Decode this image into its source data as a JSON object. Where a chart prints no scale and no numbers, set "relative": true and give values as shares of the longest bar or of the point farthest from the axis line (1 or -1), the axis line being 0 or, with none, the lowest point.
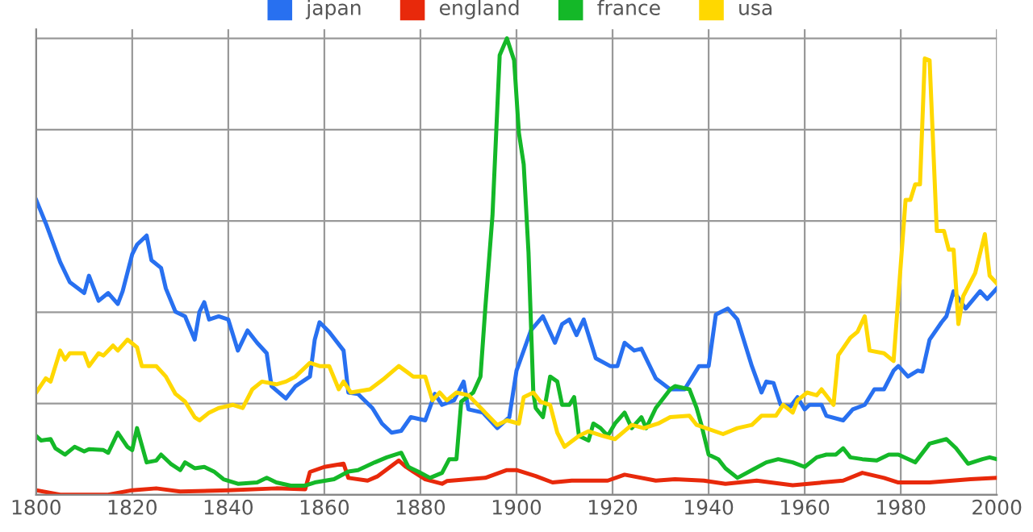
{
  "chart_data": {
    "type": "line",
    "relative": true,
    "xlim": [
      1800,
      2000
    ],
    "xticks": [
      1800,
      1820,
      1840,
      1860,
      1880,
      1900,
      1920,
      1940,
      1960,
      1980,
      2000
    ],
    "tick_labels": "x",
    "grid": true,
    "legend": "top",
    "marker": "none",
    "line_style": "solid",
    "series": [
      {
        "name": "japan",
        "color": "#2870f0",
        "x": [
          1800,
          1802,
          1805,
          1807,
          1810,
          1811,
          1813,
          1815,
          1817,
          1818,
          1820,
          1821,
          1823,
          1824,
          1826,
          1827,
          1829,
          1831,
          1833,
          1834,
          1835,
          1836,
          1838,
          1840,
          1842,
          1844,
          1846,
          1848,
          1849,
          1852,
          1854,
          1857,
          1858,
          1859,
          1861,
          1864,
          1865,
          1867,
          1870,
          1872,
          1874,
          1876,
          1878,
          1881,
          1883,
          1884.5,
          1887,
          1889,
          1890,
          1893,
          1896,
          1898.5,
          1900,
          1903,
          1905.5,
          1908,
          1909.5,
          1911,
          1912.5,
          1914,
          1916.5,
          1919.5,
          1921,
          1922.5,
          1924.5,
          1926,
          1929,
          1932,
          1935,
          1938,
          1940,
          1941.5,
          1944,
          1946,
          1949,
          1951,
          1952,
          1953.5,
          1955,
          1957,
          1958.5,
          1960,
          1961,
          1963.5,
          1964.5,
          1968,
          1970,
          1972.5,
          1974.5,
          1976.5,
          1978.5,
          1979.5,
          1981.5,
          1983.5,
          1984.5,
          1986,
          1988.5,
          1989.5,
          1991,
          1993.5,
          1996.5,
          1998,
          2000
        ],
        "values": [
          0.646,
          0.595,
          0.51,
          0.466,
          0.442,
          0.48,
          0.425,
          0.442,
          0.418,
          0.446,
          0.527,
          0.548,
          0.568,
          0.514,
          0.497,
          0.452,
          0.401,
          0.391,
          0.34,
          0.401,
          0.422,
          0.384,
          0.391,
          0.384,
          0.316,
          0.36,
          0.333,
          0.31,
          0.238,
          0.211,
          0.238,
          0.259,
          0.34,
          0.378,
          0.357,
          0.316,
          0.224,
          0.221,
          0.19,
          0.156,
          0.136,
          0.14,
          0.17,
          0.163,
          0.221,
          0.197,
          0.207,
          0.248,
          0.187,
          0.18,
          0.146,
          0.17,
          0.272,
          0.36,
          0.391,
          0.333,
          0.374,
          0.384,
          0.35,
          0.384,
          0.299,
          0.282,
          0.282,
          0.333,
          0.316,
          0.32,
          0.255,
          0.231,
          0.231,
          0.282,
          0.282,
          0.395,
          0.408,
          0.384,
          0.282,
          0.224,
          0.248,
          0.245,
          0.197,
          0.193,
          0.214,
          0.187,
          0.197,
          0.197,
          0.173,
          0.163,
          0.187,
          0.197,
          0.231,
          0.231,
          0.272,
          0.282,
          0.259,
          0.272,
          0.27,
          0.34,
          0.378,
          0.391,
          0.446,
          0.408,
          0.446,
          0.429,
          0.452
        ]
      },
      {
        "name": "england",
        "color": "#e8290b",
        "x": [
          1800,
          1805,
          1815,
          1820,
          1825,
          1830,
          1840,
          1850,
          1856,
          1857,
          1860,
          1864,
          1865,
          1869,
          1871,
          1875.5,
          1877,
          1881,
          1884.5,
          1885.5,
          1893.5,
          1898,
          1900,
          1904,
          1907.5,
          1911.5,
          1919,
          1922.5,
          1929,
          1933,
          1939,
          1943.5,
          1950,
          1957.5,
          1968,
          1972,
          1976.5,
          1979.5,
          1986,
          1994.5,
          2000
        ],
        "values": [
          0.01,
          0.0,
          0.0,
          0.01,
          0.014,
          0.007,
          0.01,
          0.014,
          0.012,
          0.05,
          0.061,
          0.068,
          0.037,
          0.031,
          0.04,
          0.075,
          0.061,
          0.034,
          0.024,
          0.03,
          0.037,
          0.054,
          0.054,
          0.041,
          0.027,
          0.031,
          0.031,
          0.044,
          0.031,
          0.034,
          0.031,
          0.024,
          0.031,
          0.021,
          0.031,
          0.048,
          0.037,
          0.027,
          0.027,
          0.034,
          0.037
        ]
      },
      {
        "name": "france",
        "color": "#14b828",
        "x": [
          1800,
          1801,
          1803,
          1804,
          1806,
          1808,
          1810,
          1811,
          1814,
          1815,
          1817,
          1819,
          1820,
          1821,
          1823,
          1825,
          1826,
          1828,
          1830,
          1831,
          1833,
          1835,
          1837,
          1839,
          1842,
          1846,
          1848,
          1850,
          1853,
          1856,
          1858,
          1862,
          1865,
          1867,
          1870.5,
          1873,
          1876,
          1877.5,
          1879.5,
          1882,
          1884.5,
          1886,
          1887.5,
          1888.5,
          1891,
          1892.5,
          1893.5,
          1895,
          1896.5,
          1898,
          1899.5,
          1900.5,
          1901.5,
          1902.5,
          1903.5,
          1904,
          1905.5,
          1907,
          1908.5,
          1909.5,
          1911,
          1912,
          1913,
          1915,
          1916,
          1917.5,
          1919,
          1920.5,
          1922.5,
          1924,
          1926,
          1927,
          1929,
          1932,
          1933,
          1936,
          1937.5,
          1938.5,
          1940,
          1942,
          1943.5,
          1946,
          1949,
          1952,
          1954.5,
          1957.5,
          1960,
          1962.5,
          1964.5,
          1966.5,
          1968,
          1969.5,
          1972,
          1975,
          1977.5,
          1979.5,
          1983,
          1986,
          1989.5,
          1991.5,
          1994,
          1997,
          1998.5,
          2000
        ],
        "values": [
          0.129,
          0.119,
          0.122,
          0.102,
          0.088,
          0.105,
          0.095,
          0.1,
          0.098,
          0.092,
          0.136,
          0.105,
          0.098,
          0.146,
          0.071,
          0.075,
          0.088,
          0.068,
          0.054,
          0.071,
          0.058,
          0.061,
          0.051,
          0.034,
          0.024,
          0.027,
          0.037,
          0.027,
          0.02,
          0.02,
          0.027,
          0.034,
          0.051,
          0.054,
          0.071,
          0.082,
          0.092,
          0.061,
          0.051,
          0.037,
          0.048,
          0.078,
          0.078,
          0.204,
          0.224,
          0.259,
          0.408,
          0.612,
          0.963,
          1.0,
          0.952,
          0.793,
          0.724,
          0.531,
          0.224,
          0.19,
          0.17,
          0.259,
          0.248,
          0.197,
          0.197,
          0.214,
          0.129,
          0.119,
          0.156,
          0.146,
          0.129,
          0.156,
          0.18,
          0.146,
          0.17,
          0.146,
          0.19,
          0.231,
          0.238,
          0.231,
          0.19,
          0.153,
          0.088,
          0.078,
          0.058,
          0.037,
          0.054,
          0.071,
          0.078,
          0.071,
          0.061,
          0.082,
          0.088,
          0.088,
          0.102,
          0.082,
          0.078,
          0.075,
          0.088,
          0.088,
          0.071,
          0.112,
          0.122,
          0.102,
          0.068,
          0.078,
          0.082,
          0.078
        ]
      },
      {
        "name": "usa",
        "color": "#ffd800",
        "x": [
          1800,
          1802,
          1803,
          1805,
          1806,
          1807,
          1810,
          1811,
          1813,
          1814,
          1816,
          1817,
          1819,
          1821,
          1822,
          1825,
          1827,
          1829,
          1831,
          1833,
          1834,
          1836,
          1838,
          1841,
          1843,
          1845,
          1847,
          1850,
          1852,
          1854,
          1857,
          1859,
          1861,
          1863,
          1864,
          1865.5,
          1869.5,
          1872.5,
          1875.5,
          1878.5,
          1881,
          1882.5,
          1884,
          1885.5,
          1887.5,
          1890,
          1893.5,
          1896,
          1898,
          1900.5,
          1901.5,
          1903.5,
          1905,
          1907,
          1908.5,
          1910,
          1913,
          1915,
          1918,
          1920.5,
          1924,
          1926.5,
          1929.5,
          1932,
          1936,
          1937.5,
          1943,
          1946,
          1949,
          1951,
          1954,
          1955.5,
          1957.5,
          1958.5,
          1960.5,
          1962.5,
          1963.5,
          1966,
          1967,
          1969.5,
          1971,
          1972.5,
          1973.5,
          1976.5,
          1978.5,
          1981,
          1982,
          1983,
          1984,
          1985,
          1986,
          1987.5,
          1989,
          1990,
          1991,
          1992,
          1993,
          1995.5,
          1997.5,
          1998.5,
          2000
        ],
        "values": [
          0.224,
          0.255,
          0.248,
          0.316,
          0.296,
          0.31,
          0.31,
          0.282,
          0.31,
          0.305,
          0.327,
          0.316,
          0.34,
          0.323,
          0.282,
          0.282,
          0.259,
          0.221,
          0.204,
          0.17,
          0.163,
          0.18,
          0.19,
          0.197,
          0.19,
          0.231,
          0.248,
          0.242,
          0.248,
          0.259,
          0.289,
          0.282,
          0.282,
          0.231,
          0.248,
          0.224,
          0.231,
          0.255,
          0.282,
          0.259,
          0.259,
          0.207,
          0.224,
          0.207,
          0.224,
          0.218,
          0.18,
          0.153,
          0.163,
          0.156,
          0.214,
          0.224,
          0.204,
          0.197,
          0.136,
          0.105,
          0.129,
          0.139,
          0.129,
          0.122,
          0.153,
          0.146,
          0.156,
          0.17,
          0.173,
          0.153,
          0.133,
          0.146,
          0.153,
          0.173,
          0.173,
          0.197,
          0.18,
          0.207,
          0.224,
          0.218,
          0.231,
          0.197,
          0.306,
          0.344,
          0.357,
          0.391,
          0.316,
          0.31,
          0.293,
          0.646,
          0.646,
          0.68,
          0.68,
          0.956,
          0.952,
          0.578,
          0.578,
          0.537,
          0.537,
          0.374,
          0.435,
          0.486,
          0.571,
          0.48,
          0.463
        ]
      }
    ]
  }
}
